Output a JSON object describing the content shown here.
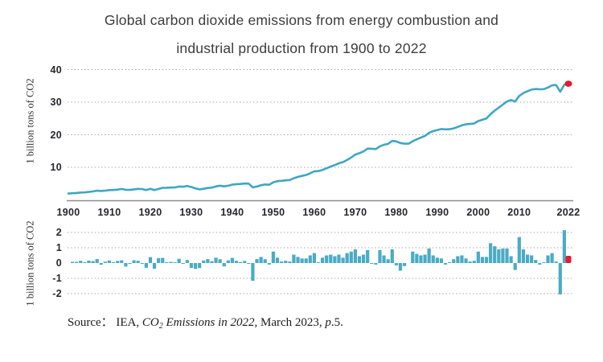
{
  "title": {
    "line1": "Global carbon dioxide emissions from energy combustion and",
    "line2": "industrial production from 1900 to 2022"
  },
  "axes": {
    "top": {
      "ylabel": "1 billion tons of CO2",
      "ytick_labels": [
        "40",
        "30",
        "20",
        "10"
      ]
    },
    "bottom": {
      "ylabel": "1 billion tons of CO2",
      "ytick_labels": [
        "2",
        "1",
        "0",
        "-1",
        "-2"
      ]
    },
    "x": {
      "tick_labels": [
        "1900",
        "1910",
        "1920",
        "1930",
        "1940",
        "1950",
        "1960",
        "1970",
        "1980",
        "1990",
        "2000",
        "2010",
        "2022"
      ]
    }
  },
  "source": {
    "prefix": "Source：  IEA, ",
    "co": "CO",
    "sub": "2",
    "italic_rest": " Emissions in 2022",
    "mid": ", March 2023, ",
    "p": "p",
    "suffix": ".5."
  },
  "colors": {
    "line": "#3fa6c3",
    "bar": "#4aabc6",
    "highlight_red": "#e8192c",
    "grid": "#b0aeae",
    "axis": "#8f8f8f",
    "tick_text": "#26262e",
    "title_text": "#3c3c3c"
  },
  "chart_data": [
    {
      "type": "line",
      "name": "global-co2-emissions-level",
      "title": "Global carbon dioxide emissions from energy combustion and industrial production from 1900 to 2022",
      "ylabel": "1 billion tons of CO2",
      "x_start": 1900,
      "x_step": 1,
      "x_end": 2022,
      "ylim": [
        0,
        42
      ],
      "yticks": [
        10,
        20,
        30,
        40
      ],
      "grid": "dotted-horizontal",
      "legend": "none",
      "values": [
        1.96,
        2.04,
        2.12,
        2.27,
        2.3,
        2.46,
        2.59,
        2.85,
        2.74,
        2.83,
        3.0,
        3.03,
        3.17,
        3.35,
        3.12,
        3.06,
        3.24,
        3.39,
        3.33,
        3.02,
        3.41,
        3.04,
        3.36,
        3.7,
        3.72,
        3.8,
        3.83,
        4.11,
        4.06,
        4.26,
        3.94,
        3.56,
        3.23,
        3.4,
        3.66,
        3.78,
        4.13,
        4.38,
        4.16,
        4.34,
        4.68,
        4.83,
        4.9,
        5.04,
        5.0,
        3.84,
        4.1,
        4.5,
        4.75,
        4.65,
        5.4,
        5.75,
        5.85,
        6.0,
        6.1,
        6.65,
        7.05,
        7.35,
        7.65,
        8.15,
        8.8,
        8.85,
        9.2,
        9.7,
        10.25,
        10.7,
        11.25,
        11.6,
        12.25,
        13.0,
        13.9,
        14.35,
        14.9,
        15.75,
        15.7,
        15.6,
        16.45,
        16.95,
        17.2,
        18.1,
        17.95,
        17.45,
        17.25,
        17.25,
        18.0,
        18.6,
        19.1,
        19.65,
        20.6,
        21.1,
        21.45,
        21.75,
        21.65,
        21.7,
        21.95,
        22.4,
        22.9,
        23.2,
        23.3,
        23.45,
        24.2,
        24.6,
        25.0,
        26.3,
        27.4,
        28.3,
        29.25,
        30.2,
        30.65,
        30.2,
        31.9,
        32.8,
        33.35,
        33.85,
        34.05,
        33.95,
        34.0,
        34.5,
        35.15,
        35.25,
        33.2,
        35.35,
        35.67
      ],
      "highlight_point": {
        "year": 2022,
        "value": 35.67,
        "color": "#e8192c"
      }
    },
    {
      "type": "bar",
      "name": "annual-change-in-co2-emissions",
      "ylabel": "1 billion tons of CO2",
      "x_start": 1901,
      "x_step": 1,
      "x_end": 2022,
      "ylim": [
        -2.5,
        2.5
      ],
      "yticks": [
        2,
        1,
        0,
        -1,
        -2
      ],
      "grid": "dotted-horizontal",
      "legend": "none",
      "values": [
        0.08,
        0.08,
        0.15,
        0.03,
        0.16,
        0.13,
        0.26,
        -0.11,
        0.09,
        0.17,
        0.03,
        0.14,
        0.18,
        -0.23,
        -0.06,
        0.18,
        0.15,
        -0.06,
        -0.31,
        0.39,
        -0.37,
        0.32,
        0.34,
        0.02,
        0.08,
        0.03,
        0.28,
        -0.05,
        0.2,
        -0.32,
        -0.38,
        -0.33,
        0.17,
        0.26,
        0.12,
        0.35,
        0.25,
        -0.22,
        0.18,
        0.34,
        0.15,
        0.07,
        0.14,
        -0.04,
        -1.16,
        0.26,
        0.4,
        0.25,
        -0.1,
        0.75,
        0.35,
        0.1,
        0.15,
        0.1,
        0.55,
        0.4,
        0.3,
        0.3,
        0.5,
        0.65,
        0.05,
        0.35,
        0.5,
        0.55,
        0.45,
        0.55,
        0.35,
        0.65,
        0.75,
        0.9,
        0.45,
        0.55,
        0.85,
        -0.05,
        -0.1,
        0.85,
        0.5,
        0.25,
        0.9,
        -0.15,
        -0.5,
        -0.2,
        0.0,
        0.75,
        0.6,
        0.5,
        0.55,
        0.95,
        0.5,
        0.35,
        0.3,
        -0.1,
        0.05,
        0.25,
        0.45,
        0.5,
        0.3,
        0.1,
        0.15,
        0.75,
        0.4,
        0.4,
        1.3,
        1.1,
        0.9,
        0.95,
        0.95,
        0.45,
        -0.45,
        1.7,
        0.9,
        0.55,
        0.5,
        0.2,
        -0.1,
        0.05,
        0.5,
        0.65,
        0.1,
        -2.05,
        2.15,
        0.32
      ],
      "highlight_bar": {
        "year": 2022,
        "value": 0.32,
        "color": "#e8192c"
      }
    }
  ]
}
